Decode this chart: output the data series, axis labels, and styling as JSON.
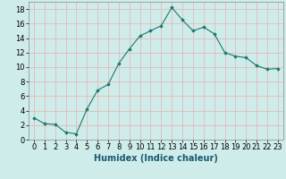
{
  "x": [
    0,
    1,
    2,
    3,
    4,
    5,
    6,
    7,
    8,
    9,
    10,
    11,
    12,
    13,
    14,
    15,
    16,
    17,
    18,
    19,
    20,
    21,
    22,
    23
  ],
  "y": [
    3,
    2.2,
    2.1,
    1.0,
    0.8,
    4.2,
    6.8,
    7.6,
    10.5,
    12.5,
    14.3,
    15.0,
    15.7,
    18.2,
    16.5,
    15.0,
    15.5,
    14.6,
    12.0,
    11.5,
    11.3,
    10.2,
    9.7,
    9.8
  ],
  "xlabel": "Humidex (Indice chaleur)",
  "line_color": "#1a7a6e",
  "marker_color": "#1a7a6e",
  "bg_color": "#ceecea",
  "grid_color": "#e8b8b8",
  "xlim": [
    -0.5,
    23.5
  ],
  "ylim": [
    0,
    19
  ],
  "yticks": [
    0,
    2,
    4,
    6,
    8,
    10,
    12,
    14,
    16,
    18
  ],
  "xticks": [
    0,
    1,
    2,
    3,
    4,
    5,
    6,
    7,
    8,
    9,
    10,
    11,
    12,
    13,
    14,
    15,
    16,
    17,
    18,
    19,
    20,
    21,
    22,
    23
  ],
  "xlabel_fontsize": 7,
  "tick_fontsize": 6
}
